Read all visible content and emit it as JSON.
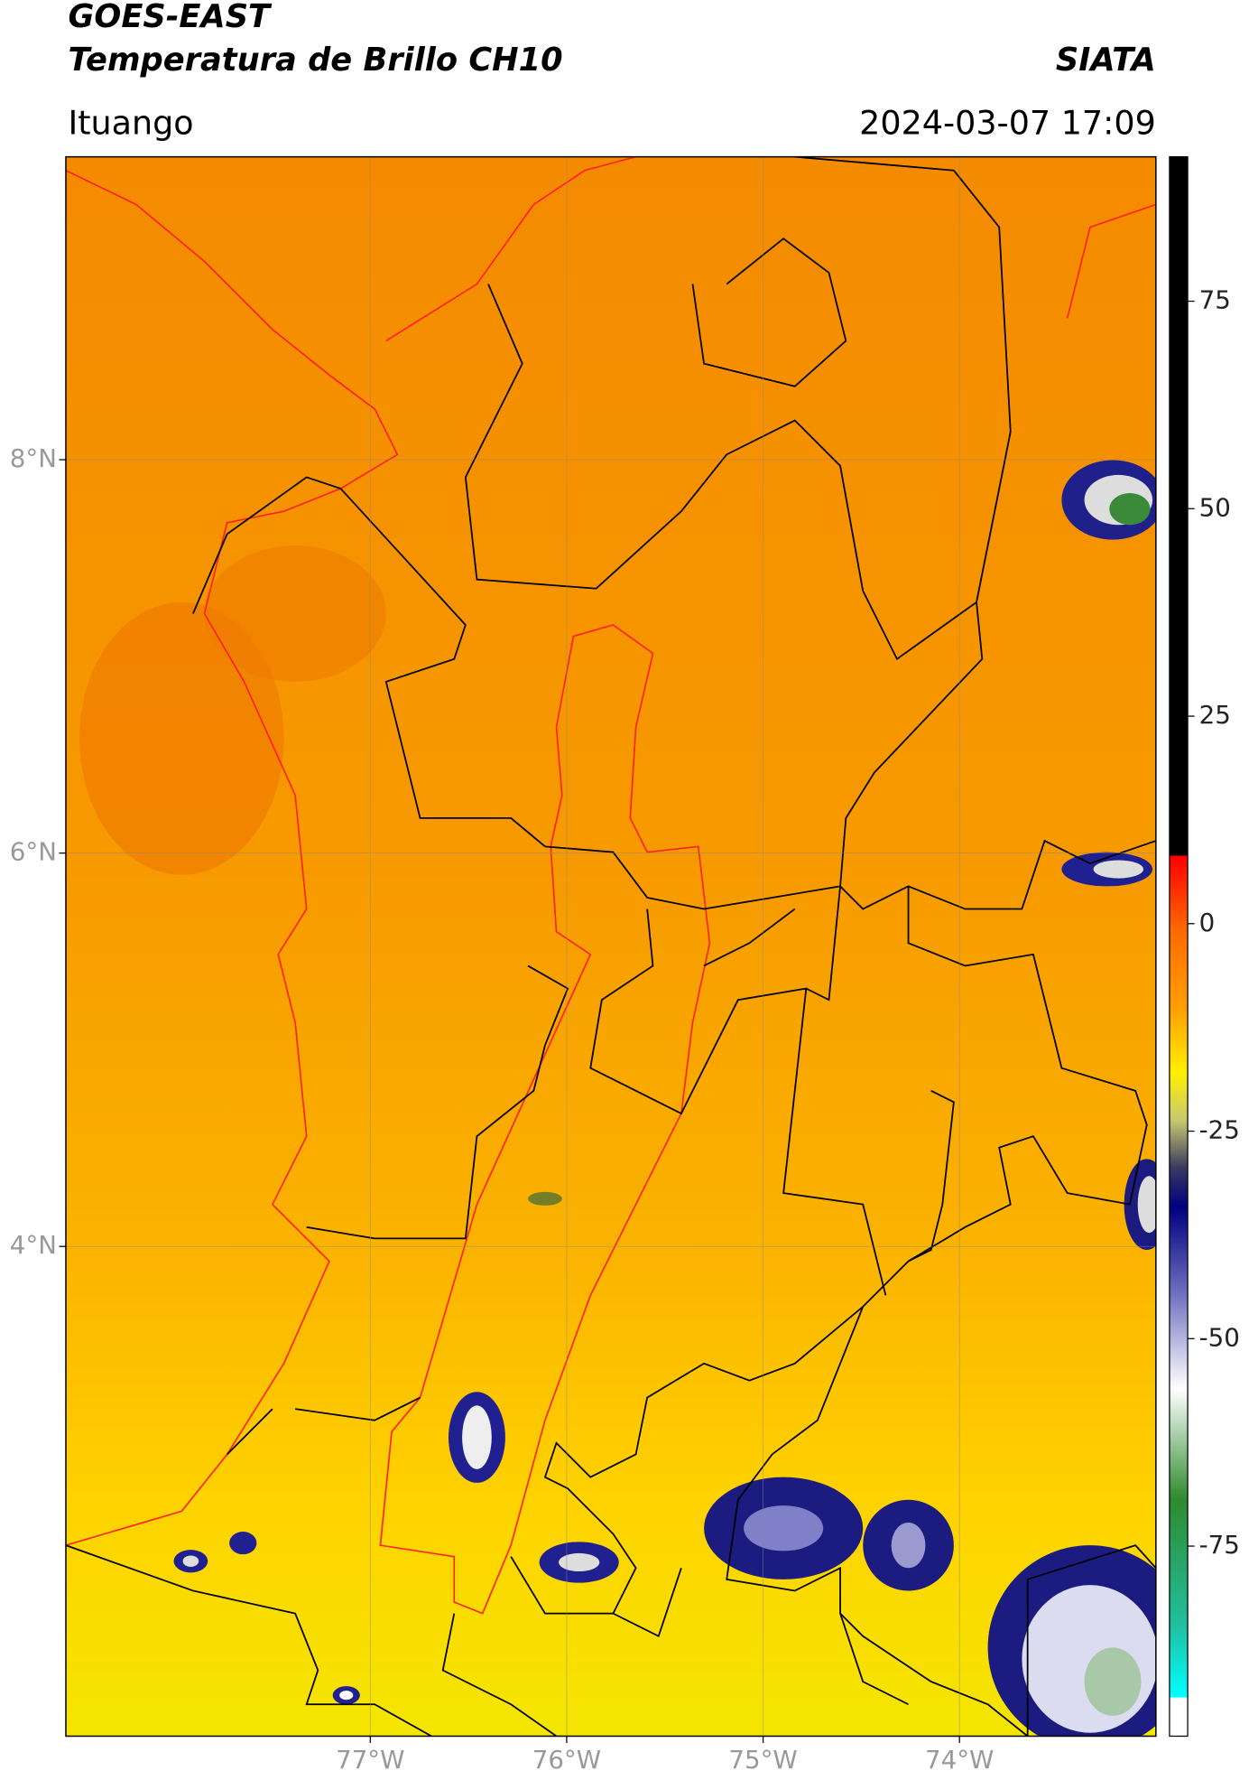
{
  "header": {
    "title_line1": "GOES-EAST",
    "title_line2": "Temperatura de Brillo CH10",
    "source": "SIATA",
    "region": "Ituango",
    "timestamp": "2024-03-07 17:09"
  },
  "map": {
    "lonlim": [
      -78.55,
      -73.0
    ],
    "latlim": [
      1.51,
      9.54
    ],
    "lat_ticks": [
      {
        "value": 8,
        "label": "8°N"
      },
      {
        "value": 6,
        "label": "6°N"
      },
      {
        "value": 4,
        "label": "4°N"
      }
    ],
    "lon_ticks": [
      {
        "value": -77,
        "label": "77°W"
      },
      {
        "value": -76,
        "label": "76°W"
      },
      {
        "value": -75,
        "label": "75°W"
      },
      {
        "value": -74,
        "label": "74°W"
      }
    ],
    "grid": true
  },
  "colorbar": {
    "clim": [
      -97.9,
      92.4
    ],
    "ticks": [
      75,
      50,
      25,
      0,
      -25,
      -50,
      -75
    ]
  }
}
